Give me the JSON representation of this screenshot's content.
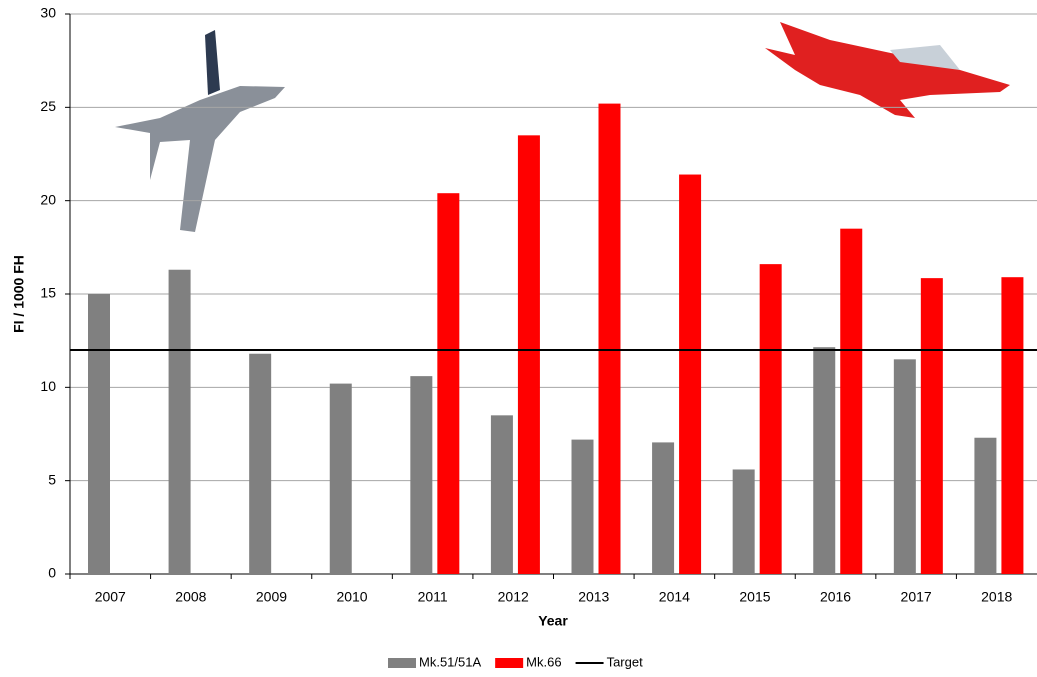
{
  "chart_data": {
    "type": "bar",
    "x_label": "Year",
    "y_label": "FI / 1000 FH",
    "categories": [
      "2007",
      "2008",
      "2009",
      "2010",
      "2011",
      "2012",
      "2013",
      "2014",
      "2015",
      "2016",
      "2017",
      "2018"
    ],
    "series": [
      {
        "name": "Mk.51/51A",
        "color": "#808080",
        "values": [
          15.0,
          16.3,
          11.8,
          10.2,
          10.6,
          8.5,
          7.2,
          7.05,
          5.6,
          12.15,
          11.5,
          7.3
        ]
      },
      {
        "name": "Mk.66",
        "color": "#ff0000",
        "values": [
          null,
          null,
          null,
          null,
          20.4,
          23.5,
          25.2,
          21.4,
          16.6,
          18.5,
          15.85,
          15.9
        ]
      }
    ],
    "target": {
      "name": "Target",
      "value": 12,
      "color": "#000000"
    },
    "ylim": [
      0,
      30
    ],
    "yticks": [
      0,
      5,
      10,
      15,
      20,
      25,
      30
    ],
    "grid": true
  }
}
